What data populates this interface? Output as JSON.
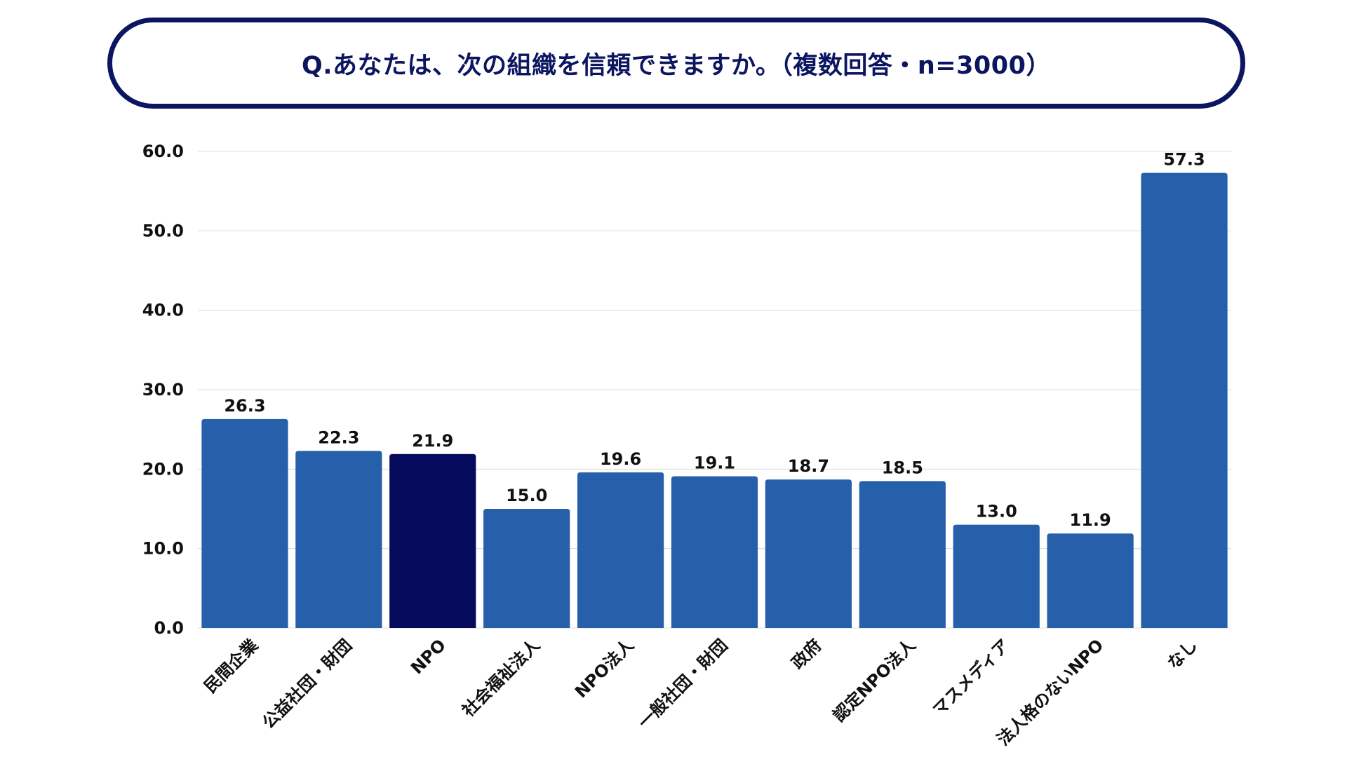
{
  "title": "Q.あなたは、次の組織を信頼できますか。（複数回答・n=3000）",
  "chart_data": {
    "type": "bar",
    "title": "Q.あなたは、次の組織を信頼できますか。（複数回答・n=3000）",
    "xlabel": "",
    "ylabel": "",
    "ylim": [
      0,
      60
    ],
    "yticks": [
      "0.0",
      "10.0",
      "20.0",
      "30.0",
      "40.0",
      "50.0",
      "60.0"
    ],
    "grid": true,
    "categories": [
      "民間企業",
      "公益社団・財団",
      "NPO",
      "社会福祉法人",
      "NPO法人",
      "一般社団・財団",
      "政府",
      "認定NPO法人",
      "マスメディア",
      "法人格のないNPO",
      "なし"
    ],
    "values": [
      26.3,
      22.3,
      21.9,
      15.0,
      19.6,
      19.1,
      18.7,
      18.5,
      13.0,
      11.9,
      57.3
    ],
    "value_labels": [
      "26.3",
      "22.3",
      "21.9",
      "15.0",
      "19.6",
      "19.1",
      "18.7",
      "18.5",
      "13.0",
      "11.9",
      "57.3"
    ],
    "highlight_index": 2,
    "colors": {
      "bar": "#2660ab",
      "highlight": "#050a5c",
      "grid": "#dcdcdc",
      "frame": "#0b1560"
    }
  }
}
